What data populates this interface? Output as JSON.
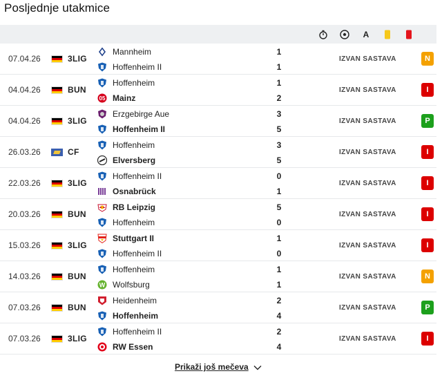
{
  "title": "Posljednje utakmice",
  "header_icons": [
    "stopwatch-icon",
    "football-icon",
    "assist-icon",
    "yellow-card-icon",
    "red-card-icon"
  ],
  "assist_letter": "A",
  "colors": {
    "yellow_card": "#f6c81b",
    "red_card": "#e4141c",
    "win": "#1ca01c",
    "draw": "#f4a100",
    "loss": "#dc0000"
  },
  "matches": [
    {
      "date": "07.04.26",
      "flag": "de",
      "competition": "3LIG",
      "home": {
        "name": "Mannheim",
        "logo": "mannheim",
        "bold": false,
        "score": "1"
      },
      "away": {
        "name": "Hoffenheim II",
        "logo": "hoffenheim",
        "bold": false,
        "score": "1"
      },
      "lineup": "IZVAN SASTAVA",
      "result": "N"
    },
    {
      "date": "04.04.26",
      "flag": "de",
      "competition": "BUN",
      "home": {
        "name": "Hoffenheim",
        "logo": "hoffenheim",
        "bold": false,
        "score": "1"
      },
      "away": {
        "name": "Mainz",
        "logo": "mainz",
        "bold": true,
        "score": "2"
      },
      "lineup": "IZVAN SASTAVA",
      "result": "I"
    },
    {
      "date": "04.04.26",
      "flag": "de",
      "competition": "3LIG",
      "home": {
        "name": "Erzgebirge Aue",
        "logo": "aue",
        "bold": false,
        "score": "3"
      },
      "away": {
        "name": "Hoffenheim II",
        "logo": "hoffenheim",
        "bold": true,
        "score": "5"
      },
      "lineup": "IZVAN SASTAVA",
      "result": "P"
    },
    {
      "date": "26.03.26",
      "flag": "cf",
      "competition": "CF",
      "home": {
        "name": "Hoffenheim",
        "logo": "hoffenheim",
        "bold": false,
        "score": "3"
      },
      "away": {
        "name": "Elversberg",
        "logo": "elversberg",
        "bold": true,
        "score": "5"
      },
      "lineup": "IZVAN SASTAVA",
      "result": "I"
    },
    {
      "date": "22.03.26",
      "flag": "de",
      "competition": "3LIG",
      "home": {
        "name": "Hoffenheim II",
        "logo": "hoffenheim",
        "bold": false,
        "score": "0"
      },
      "away": {
        "name": "Osnabrück",
        "logo": "osnabrueck",
        "bold": true,
        "score": "1"
      },
      "lineup": "IZVAN SASTAVA",
      "result": "I"
    },
    {
      "date": "20.03.26",
      "flag": "de",
      "competition": "BUN",
      "home": {
        "name": "RB Leipzig",
        "logo": "leipzig",
        "bold": true,
        "score": "5"
      },
      "away": {
        "name": "Hoffenheim",
        "logo": "hoffenheim",
        "bold": false,
        "score": "0"
      },
      "lineup": "IZVAN SASTAVA",
      "result": "I"
    },
    {
      "date": "15.03.26",
      "flag": "de",
      "competition": "3LIG",
      "home": {
        "name": "Stuttgart II",
        "logo": "stuttgart",
        "bold": true,
        "score": "1"
      },
      "away": {
        "name": "Hoffenheim II",
        "logo": "hoffenheim",
        "bold": false,
        "score": "0"
      },
      "lineup": "IZVAN SASTAVA",
      "result": "I"
    },
    {
      "date": "14.03.26",
      "flag": "de",
      "competition": "BUN",
      "home": {
        "name": "Hoffenheim",
        "logo": "hoffenheim",
        "bold": false,
        "score": "1"
      },
      "away": {
        "name": "Wolfsburg",
        "logo": "wolfsburg",
        "bold": false,
        "score": "1"
      },
      "lineup": "IZVAN SASTAVA",
      "result": "N"
    },
    {
      "date": "07.03.26",
      "flag": "de",
      "competition": "BUN",
      "home": {
        "name": "Heidenheim",
        "logo": "heidenheim",
        "bold": false,
        "score": "2"
      },
      "away": {
        "name": "Hoffenheim",
        "logo": "hoffenheim",
        "bold": true,
        "score": "4"
      },
      "lineup": "IZVAN SASTAVA",
      "result": "P"
    },
    {
      "date": "07.03.26",
      "flag": "de",
      "competition": "3LIG",
      "home": {
        "name": "Hoffenheim II",
        "logo": "hoffenheim",
        "bold": false,
        "score": "2"
      },
      "away": {
        "name": "RW Essen",
        "logo": "essen",
        "bold": true,
        "score": "4"
      },
      "lineup": "IZVAN SASTAVA",
      "result": "I"
    }
  ],
  "show_more_label": "Prikaži još mečeva"
}
